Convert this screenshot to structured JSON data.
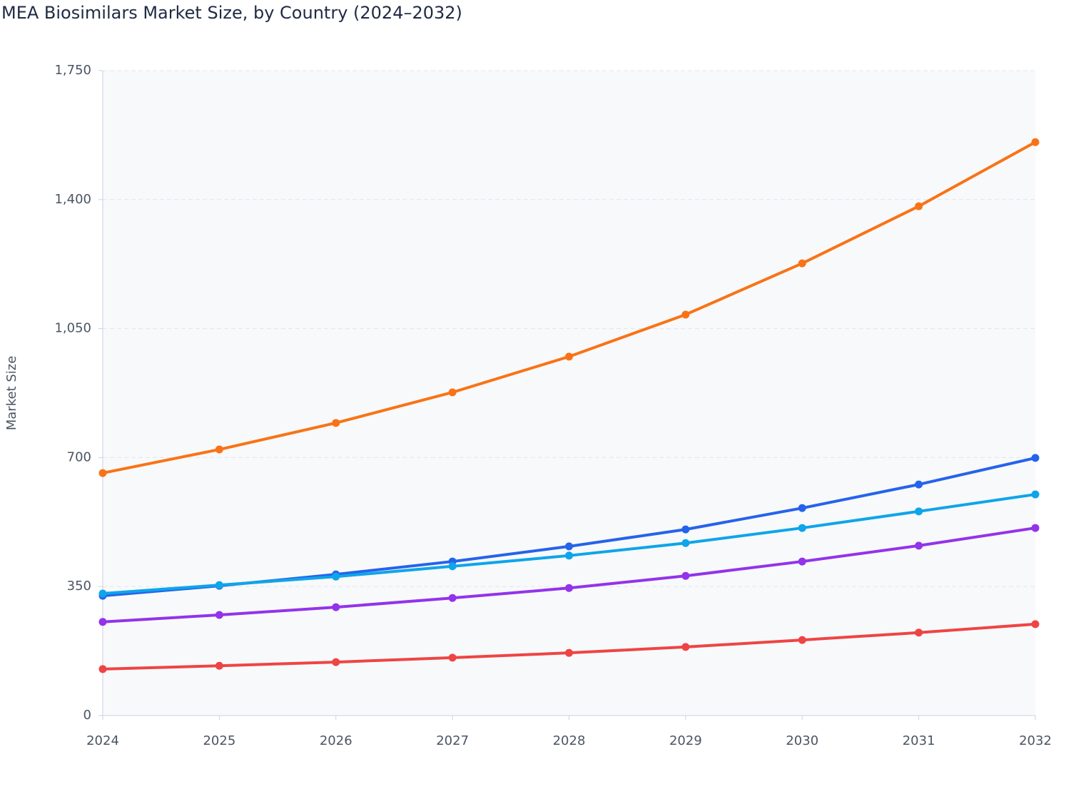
{
  "chart_data": {
    "type": "line",
    "title": "MEA Biosimilars Market Size, by Country (2024–2032)",
    "y_label": "Market Size",
    "categories": [
      "2024",
      "2025",
      "2026",
      "2027",
      "2028",
      "2029",
      "2030",
      "2031",
      "2032"
    ],
    "series": [
      {
        "color": "#f97316",
        "values": [
          658,
          722,
          794,
          877,
          974,
          1088,
          1227,
          1382,
          1556
        ]
      },
      {
        "color": "#2563eb",
        "values": [
          325,
          352,
          383,
          418,
          459,
          505,
          563,
          627,
          699
        ]
      },
      {
        "color": "#0ea5e9",
        "values": [
          331,
          354,
          377,
          405,
          434,
          468,
          509,
          554,
          600
        ]
      },
      {
        "color": "#9333ea",
        "values": [
          254,
          273,
          294,
          319,
          346,
          379,
          418,
          461,
          509
        ]
      },
      {
        "color": "#ef4444",
        "values": [
          126,
          135,
          145,
          157,
          170,
          186,
          205,
          225,
          248
        ]
      }
    ],
    "ylim": [
      0,
      1750
    ],
    "yticks": [
      0,
      350,
      700,
      {
        "value": 1050,
        "label": "1,050"
      },
      {
        "value": 1400,
        "label": "1,400"
      },
      {
        "value": 1750,
        "label": "1,750"
      }
    ],
    "grid": true
  }
}
